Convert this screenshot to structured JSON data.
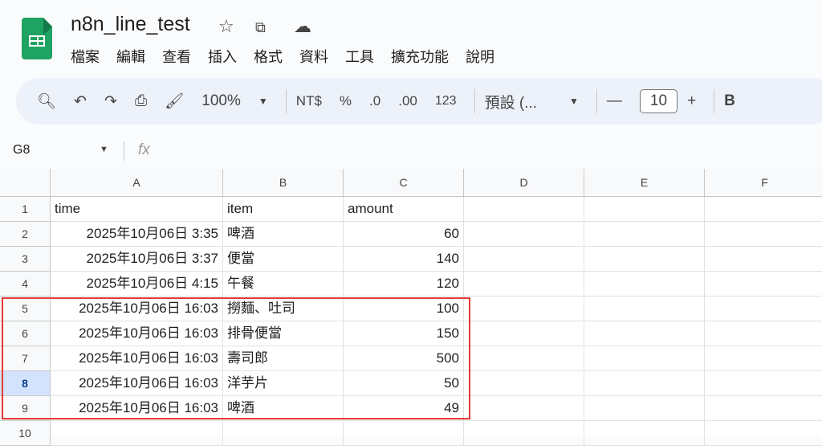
{
  "app": {
    "title": "n8n_line_test",
    "colors": {
      "brand": "#1ea362",
      "highlight": "#e53935",
      "selected_row_header": "#d3e3fd"
    }
  },
  "menu": [
    "檔案",
    "編輯",
    "查看",
    "插入",
    "格式",
    "資料",
    "工具",
    "擴充功能",
    "說明"
  ],
  "toolbar": {
    "zoom": "100%",
    "currency": "NT$",
    "percent": "%",
    "dec_decrease": ".0",
    "dec_increase": ".00",
    "number_format": "123",
    "font": "預設 (...",
    "font_size": "10",
    "bold": "B"
  },
  "formula_bar": {
    "cell_ref": "G8",
    "fx": "fx",
    "value": ""
  },
  "sheet": {
    "columns": [
      "A",
      "B",
      "C",
      "D",
      "E",
      "F"
    ],
    "selected_row": 8,
    "rows": [
      [
        "time",
        "item",
        "amount"
      ],
      [
        "2025年10月06日 3:35",
        "啤酒",
        "60"
      ],
      [
        "2025年10月06日 3:37",
        "便當",
        "140"
      ],
      [
        "2025年10月06日 4:15",
        "午餐",
        "120"
      ],
      [
        "2025年10月06日 16:03",
        "撈麵、吐司",
        "100"
      ],
      [
        "2025年10月06日 16:03",
        "排骨便當",
        "150"
      ],
      [
        "2025年10月06日 16:03",
        "壽司郎",
        "500"
      ],
      [
        "2025年10月06日 16:03",
        "洋芋片",
        "50"
      ],
      [
        "2025年10月06日 16:03",
        "啤酒",
        "49"
      ],
      [
        "",
        "",
        ""
      ]
    ],
    "row_numbers": [
      "1",
      "2",
      "3",
      "4",
      "5",
      "6",
      "7",
      "8",
      "9",
      "10"
    ]
  }
}
